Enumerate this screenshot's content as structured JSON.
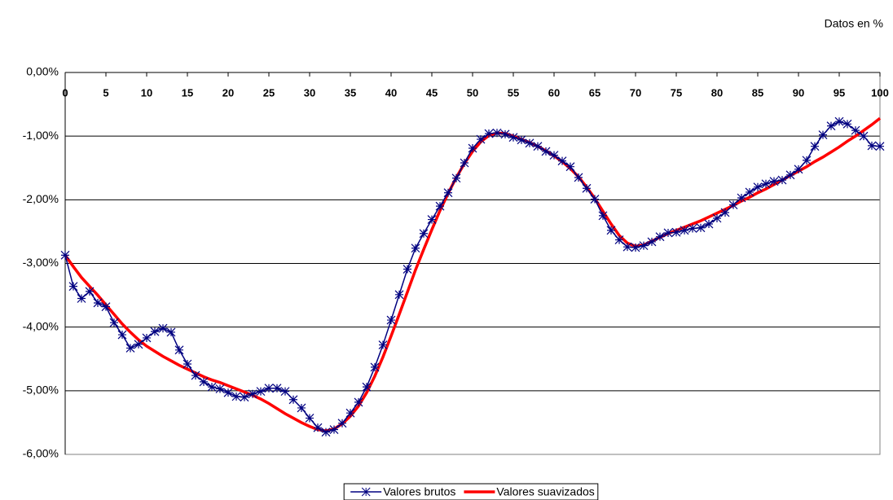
{
  "chart_data": {
    "type": "line",
    "subtitle": "Datos en %",
    "x": [
      0,
      1,
      2,
      3,
      4,
      5,
      6,
      7,
      8,
      9,
      10,
      11,
      12,
      13,
      14,
      15,
      16,
      17,
      18,
      19,
      20,
      21,
      22,
      23,
      24,
      25,
      26,
      27,
      28,
      29,
      30,
      31,
      32,
      33,
      34,
      35,
      36,
      37,
      38,
      39,
      40,
      41,
      42,
      43,
      44,
      45,
      46,
      47,
      48,
      49,
      50,
      51,
      52,
      53,
      54,
      55,
      56,
      57,
      58,
      59,
      60,
      61,
      62,
      63,
      64,
      65,
      66,
      67,
      68,
      69,
      70,
      71,
      72,
      73,
      74,
      75,
      76,
      77,
      78,
      79,
      80,
      81,
      82,
      83,
      84,
      85,
      86,
      87,
      88,
      89,
      90,
      91,
      92,
      93,
      94,
      95,
      96,
      97,
      98,
      99,
      100
    ],
    "series": [
      {
        "name": "Valores brutos",
        "color": "#000080",
        "marker": "star",
        "values": [
          -2.87,
          -3.36,
          -3.55,
          -3.44,
          -3.62,
          -3.68,
          -3.93,
          -4.12,
          -4.33,
          -4.27,
          -4.17,
          -4.07,
          -4.02,
          -4.08,
          -4.36,
          -4.58,
          -4.76,
          -4.86,
          -4.94,
          -4.97,
          -5.03,
          -5.09,
          -5.1,
          -5.05,
          -5.01,
          -4.96,
          -4.96,
          -5.01,
          -5.14,
          -5.27,
          -5.43,
          -5.58,
          -5.65,
          -5.61,
          -5.51,
          -5.35,
          -5.18,
          -4.94,
          -4.63,
          -4.28,
          -3.89,
          -3.49,
          -3.09,
          -2.76,
          -2.53,
          -2.31,
          -2.1,
          -1.89,
          -1.66,
          -1.42,
          -1.19,
          -1.05,
          -0.96,
          -0.95,
          -0.97,
          -1.02,
          -1.06,
          -1.11,
          -1.16,
          -1.24,
          -1.3,
          -1.39,
          -1.48,
          -1.65,
          -1.82,
          -1.99,
          -2.25,
          -2.48,
          -2.63,
          -2.74,
          -2.75,
          -2.72,
          -2.66,
          -2.58,
          -2.52,
          -2.51,
          -2.48,
          -2.45,
          -2.44,
          -2.38,
          -2.29,
          -2.2,
          -2.08,
          -1.97,
          -1.88,
          -1.8,
          -1.75,
          -1.71,
          -1.69,
          -1.61,
          -1.52,
          -1.38,
          -1.16,
          -0.98,
          -0.84,
          -0.77,
          -0.81,
          -0.91,
          -1.0,
          -1.15,
          -1.16
        ]
      },
      {
        "name": "Valores suavizados",
        "color": "#ff0000",
        "values": [
          -2.87,
          -3.05,
          -3.22,
          -3.36,
          -3.5,
          -3.65,
          -3.8,
          -3.95,
          -4.08,
          -4.2,
          -4.3,
          -4.38,
          -4.46,
          -4.53,
          -4.6,
          -4.66,
          -4.72,
          -4.78,
          -4.83,
          -4.87,
          -4.92,
          -4.97,
          -5.02,
          -5.07,
          -5.13,
          -5.2,
          -5.28,
          -5.36,
          -5.43,
          -5.5,
          -5.56,
          -5.61,
          -5.63,
          -5.6,
          -5.52,
          -5.4,
          -5.24,
          -5.03,
          -4.77,
          -4.47,
          -4.14,
          -3.8,
          -3.45,
          -3.1,
          -2.78,
          -2.47,
          -2.17,
          -1.9,
          -1.65,
          -1.43,
          -1.24,
          -1.09,
          -0.99,
          -0.95,
          -0.96,
          -1.0,
          -1.05,
          -1.1,
          -1.16,
          -1.23,
          -1.31,
          -1.4,
          -1.51,
          -1.64,
          -1.8,
          -1.98,
          -2.18,
          -2.38,
          -2.56,
          -2.68,
          -2.73,
          -2.71,
          -2.65,
          -2.59,
          -2.53,
          -2.48,
          -2.43,
          -2.38,
          -2.33,
          -2.27,
          -2.21,
          -2.15,
          -2.09,
          -2.02,
          -1.96,
          -1.89,
          -1.83,
          -1.76,
          -1.69,
          -1.62,
          -1.55,
          -1.48,
          -1.4,
          -1.33,
          -1.25,
          -1.17,
          -1.08,
          -1.0,
          -0.91,
          -0.82,
          -0.72
        ]
      }
    ],
    "xlim": [
      0,
      100
    ],
    "xticks": [
      0,
      5,
      10,
      15,
      20,
      25,
      30,
      35,
      40,
      45,
      50,
      55,
      60,
      65,
      70,
      75,
      80,
      85,
      90,
      95,
      100
    ],
    "ylim": [
      -6,
      0
    ],
    "yticks": [
      {
        "value": 0,
        "label": "0,00%"
      },
      {
        "value": -1,
        "label": "-1,00%"
      },
      {
        "value": -2,
        "label": "-2,00%"
      },
      {
        "value": -3,
        "label": "-3,00%"
      },
      {
        "value": -4,
        "label": "-4,00%"
      },
      {
        "value": -5,
        "label": "-5,00%"
      },
      {
        "value": -6,
        "label": "-6,00%"
      }
    ],
    "grid": true,
    "legend": "bottom"
  }
}
